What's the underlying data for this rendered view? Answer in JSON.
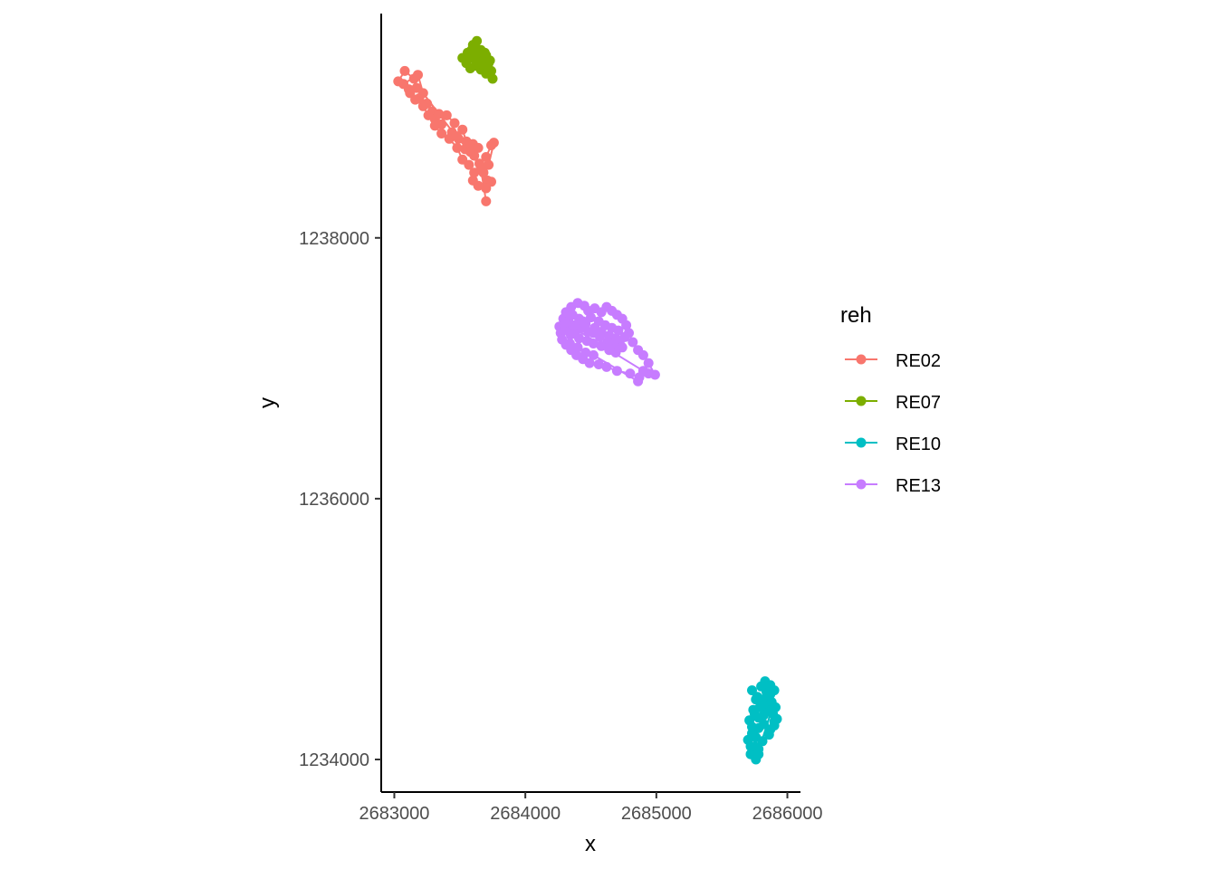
{
  "chart_data": {
    "type": "line",
    "xlabel": "x",
    "ylabel": "y",
    "xlim": [
      2682900,
      2686100
    ],
    "ylim": [
      1233750,
      1239720
    ],
    "x_ticks": [
      2683000,
      2684000,
      2685000,
      2686000
    ],
    "x_tick_labels": [
      "2683000",
      "2684000",
      "2685000",
      "2686000"
    ],
    "y_ticks": [
      1234000,
      1236000,
      1238000
    ],
    "y_tick_labels": [
      "1234000",
      "1236000",
      "1238000"
    ],
    "grid": false,
    "legend": {
      "title": "reh",
      "placement": "right"
    },
    "series": [
      {
        "name": "RE02",
        "color": "#F8766D",
        "points": [
          [
            2683030,
            1239200
          ],
          [
            2683080,
            1239280
          ],
          [
            2683150,
            1239220
          ],
          [
            2683170,
            1239150
          ],
          [
            2683120,
            1239110
          ],
          [
            2683190,
            1239070
          ],
          [
            2683250,
            1239030
          ],
          [
            2683290,
            1238970
          ],
          [
            2683310,
            1238910
          ],
          [
            2683360,
            1238870
          ],
          [
            2683400,
            1238940
          ],
          [
            2683460,
            1238880
          ],
          [
            2683440,
            1238810
          ],
          [
            2683490,
            1238760
          ],
          [
            2683520,
            1238830
          ],
          [
            2683550,
            1238740
          ],
          [
            2683540,
            1238680
          ],
          [
            2683600,
            1238720
          ],
          [
            2683640,
            1238690
          ],
          [
            2683610,
            1238630
          ],
          [
            2683650,
            1238570
          ],
          [
            2683700,
            1238620
          ],
          [
            2683740,
            1238710
          ],
          [
            2683760,
            1238730
          ],
          [
            2683720,
            1238560
          ],
          [
            2683680,
            1238500
          ],
          [
            2683710,
            1238440
          ],
          [
            2683740,
            1238430
          ],
          [
            2683700,
            1238380
          ],
          [
            2683640,
            1238400
          ],
          [
            2683600,
            1238440
          ],
          [
            2683610,
            1238500
          ],
          [
            2683570,
            1238560
          ],
          [
            2683520,
            1238600
          ],
          [
            2683480,
            1238690
          ],
          [
            2683420,
            1238760
          ],
          [
            2683360,
            1238800
          ],
          [
            2683310,
            1238860
          ],
          [
            2683260,
            1238940
          ],
          [
            2683220,
            1239010
          ],
          [
            2683160,
            1239060
          ],
          [
            2683110,
            1239140
          ],
          [
            2683070,
            1239180
          ],
          [
            2683180,
            1239250
          ],
          [
            2683220,
            1239110
          ],
          [
            2683340,
            1238950
          ],
          [
            2683470,
            1238780
          ],
          [
            2683580,
            1238660
          ],
          [
            2683660,
            1238530
          ],
          [
            2683700,
            1238280
          ]
        ]
      },
      {
        "name": "RE07",
        "color": "#7CAE00",
        "points": [
          [
            2683520,
            1239380
          ],
          [
            2683560,
            1239420
          ],
          [
            2683600,
            1239480
          ],
          [
            2683630,
            1239510
          ],
          [
            2683660,
            1239440
          ],
          [
            2683700,
            1239400
          ],
          [
            2683720,
            1239340
          ],
          [
            2683740,
            1239280
          ],
          [
            2683750,
            1239220
          ],
          [
            2683700,
            1239260
          ],
          [
            2683660,
            1239290
          ],
          [
            2683620,
            1239320
          ],
          [
            2683580,
            1239300
          ],
          [
            2683550,
            1239340
          ],
          [
            2683600,
            1239380
          ],
          [
            2683640,
            1239400
          ],
          [
            2683680,
            1239360
          ],
          [
            2683710,
            1239310
          ],
          [
            2683650,
            1239340
          ],
          [
            2683590,
            1239440
          ],
          [
            2683560,
            1239370
          ],
          [
            2683690,
            1239420
          ],
          [
            2683730,
            1239360
          ],
          [
            2683620,
            1239460
          ]
        ]
      },
      {
        "name": "RE10",
        "color": "#00BFC4",
        "points": [
          [
            2685720,
            1234040
          ],
          [
            2685750,
            1234100
          ],
          [
            2685760,
            1234170
          ],
          [
            2685730,
            1234200
          ],
          [
            2685780,
            1234240
          ],
          [
            2685820,
            1234270
          ],
          [
            2685870,
            1234230
          ],
          [
            2685900,
            1234260
          ],
          [
            2685920,
            1234310
          ],
          [
            2685890,
            1234350
          ],
          [
            2685850,
            1234380
          ],
          [
            2685820,
            1234340
          ],
          [
            2685780,
            1234320
          ],
          [
            2685750,
            1234350
          ],
          [
            2685790,
            1234400
          ],
          [
            2685830,
            1234430
          ],
          [
            2685880,
            1234440
          ],
          [
            2685910,
            1234400
          ],
          [
            2685870,
            1234500
          ],
          [
            2685840,
            1234520
          ],
          [
            2685800,
            1234560
          ],
          [
            2685830,
            1234600
          ],
          [
            2685870,
            1234570
          ],
          [
            2685900,
            1234530
          ],
          [
            2685850,
            1234480
          ],
          [
            2685810,
            1234460
          ],
          [
            2685770,
            1234480
          ],
          [
            2685730,
            1234530
          ],
          [
            2685760,
            1234460
          ],
          [
            2685800,
            1234410
          ],
          [
            2685740,
            1234380
          ],
          [
            2685710,
            1234300
          ],
          [
            2685730,
            1234250
          ],
          [
            2685700,
            1234150
          ],
          [
            2685720,
            1234100
          ],
          [
            2685780,
            1234080
          ],
          [
            2685810,
            1234140
          ],
          [
            2685860,
            1234190
          ],
          [
            2685900,
            1234290
          ],
          [
            2685880,
            1234380
          ],
          [
            2685760,
            1234000
          ],
          [
            2685780,
            1234040
          ]
        ]
      },
      {
        "name": "RE13",
        "color": "#C77CFF",
        "points": [
          [
            2684260,
            1237320
          ],
          [
            2684290,
            1237380
          ],
          [
            2684310,
            1237430
          ],
          [
            2684350,
            1237470
          ],
          [
            2684400,
            1237500
          ],
          [
            2684450,
            1237480
          ],
          [
            2684480,
            1237440
          ],
          [
            2684530,
            1237460
          ],
          [
            2684580,
            1237430
          ],
          [
            2684620,
            1237470
          ],
          [
            2684660,
            1237440
          ],
          [
            2684700,
            1237410
          ],
          [
            2684740,
            1237380
          ],
          [
            2684770,
            1237330
          ],
          [
            2684790,
            1237270
          ],
          [
            2684820,
            1237200
          ],
          [
            2684860,
            1237140
          ],
          [
            2684900,
            1237100
          ],
          [
            2684940,
            1237040
          ],
          [
            2684990,
            1236950
          ],
          [
            2684940,
            1236960
          ],
          [
            2684870,
            1236930
          ],
          [
            2684800,
            1236960
          ],
          [
            2684700,
            1236980
          ],
          [
            2684620,
            1237010
          ],
          [
            2684560,
            1237030
          ],
          [
            2684490,
            1237040
          ],
          [
            2684440,
            1237070
          ],
          [
            2684390,
            1237100
          ],
          [
            2684350,
            1237140
          ],
          [
            2684310,
            1237180
          ],
          [
            2684280,
            1237220
          ],
          [
            2684270,
            1237270
          ],
          [
            2684330,
            1237300
          ],
          [
            2684380,
            1237270
          ],
          [
            2684430,
            1237310
          ],
          [
            2684480,
            1237280
          ],
          [
            2684530,
            1237310
          ],
          [
            2684580,
            1237280
          ],
          [
            2684640,
            1237250
          ],
          [
            2684690,
            1237230
          ],
          [
            2684720,
            1237200
          ],
          [
            2684680,
            1237170
          ],
          [
            2684630,
            1237200
          ],
          [
            2684570,
            1237240
          ],
          [
            2684520,
            1237270
          ],
          [
            2684460,
            1237340
          ],
          [
            2684410,
            1237380
          ],
          [
            2684360,
            1237410
          ],
          [
            2684330,
            1237360
          ],
          [
            2684380,
            1237330
          ],
          [
            2684440,
            1237360
          ],
          [
            2684500,
            1237390
          ],
          [
            2684560,
            1237360
          ],
          [
            2684610,
            1237330
          ],
          [
            2684660,
            1237310
          ],
          [
            2684710,
            1237290
          ],
          [
            2684760,
            1237240
          ],
          [
            2684740,
            1237160
          ],
          [
            2684690,
            1237120
          ],
          [
            2684640,
            1237140
          ],
          [
            2684580,
            1237170
          ],
          [
            2684520,
            1237190
          ],
          [
            2684470,
            1237210
          ],
          [
            2684410,
            1237230
          ],
          [
            2684350,
            1237260
          ],
          [
            2684300,
            1237290
          ],
          [
            2684340,
            1237190
          ],
          [
            2684400,
            1237160
          ],
          [
            2684460,
            1237120
          ],
          [
            2684520,
            1237100
          ],
          [
            2684860,
            1236900
          ],
          [
            2684900,
            1236980
          ],
          [
            2684300,
            1237350
          ]
        ]
      }
    ]
  }
}
